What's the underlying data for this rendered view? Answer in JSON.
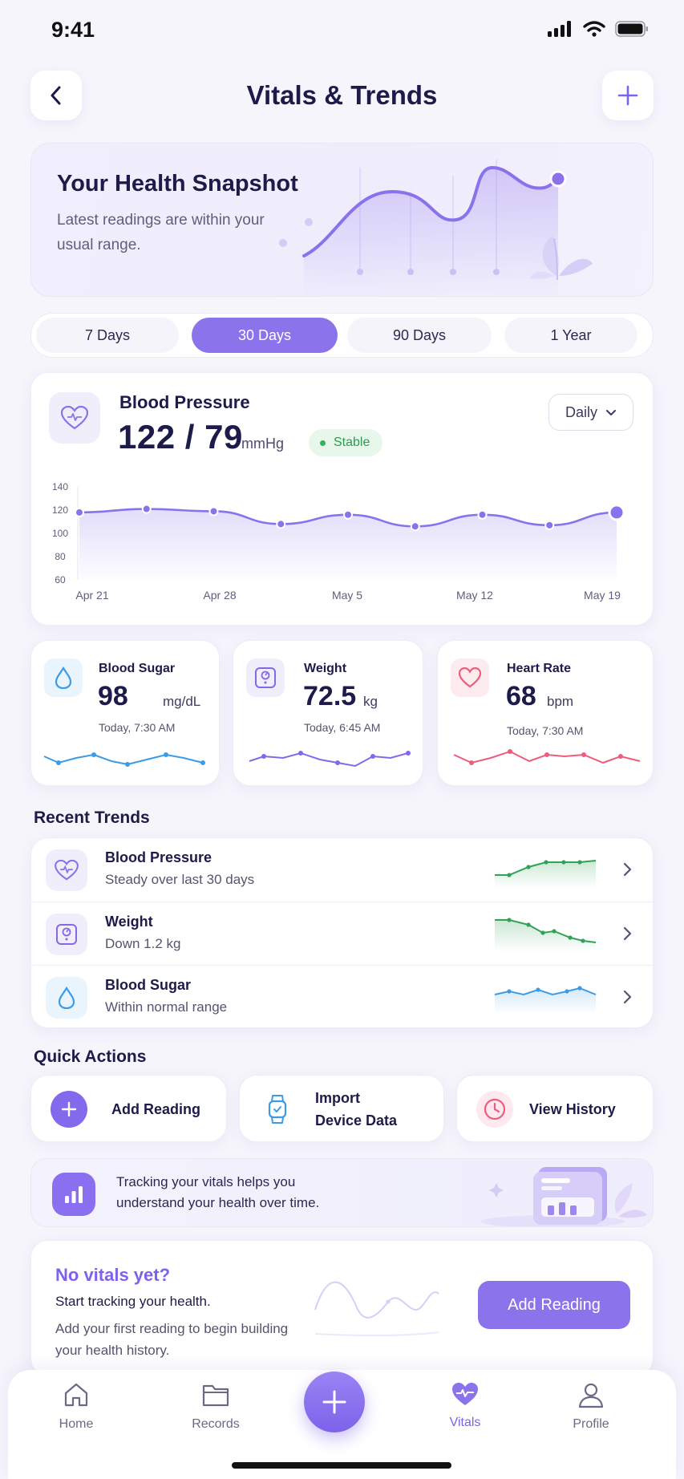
{
  "status_bar": {
    "time": "9:41"
  },
  "header": {
    "title": "Vitals & Trends"
  },
  "snapshot": {
    "title": "Your Health Snapshot",
    "subtitle": "Latest readings are within your usual range."
  },
  "range_tabs": [
    {
      "label": "7 Days",
      "active": false
    },
    {
      "label": "30 Days",
      "active": true
    },
    {
      "label": "90 Days",
      "active": false
    },
    {
      "label": "1 Year",
      "active": false
    }
  ],
  "blood_pressure": {
    "title": "Blood Pressure",
    "value": "122 / 79",
    "unit": "mmHg",
    "status": "Stable",
    "period_select": "Daily"
  },
  "chart_data": {
    "type": "area",
    "y_ticks": [
      "140",
      "120",
      "100",
      "80",
      "60"
    ],
    "x_labels": [
      "Apr 21",
      "Apr 28",
      "May 5",
      "May 12",
      "May 19"
    ],
    "ylim": [
      60,
      140
    ],
    "series": [
      {
        "values": [
          118,
          121,
          119,
          108,
          116,
          106,
          116,
          107,
          118
        ]
      }
    ]
  },
  "metrics": [
    {
      "title": "Blood Sugar",
      "value": "98",
      "unit": "mg/dL",
      "time": "Today, 7:30 AM",
      "icon": "drop-icon",
      "color": "#3b9be6"
    },
    {
      "title": "Weight",
      "value": "72.5",
      "unit": "kg",
      "time": "Today, 6:45 AM",
      "icon": "scale-icon",
      "color": "#8468e8"
    },
    {
      "title": "Heart Rate",
      "value": "68",
      "unit": "bpm",
      "time": "Today, 7:30 AM",
      "icon": "heart-icon",
      "color": "#ee5c7c"
    }
  ],
  "recent_trends": {
    "title": "Recent Trends",
    "items": [
      {
        "title": "Blood Pressure",
        "subtitle": "Steady over last 30 days",
        "color": "#2fa356"
      },
      {
        "title": "Weight",
        "subtitle": "Down 1.2 kg",
        "color": "#2fa356"
      },
      {
        "title": "Blood Sugar",
        "subtitle": "Within normal range",
        "color": "#3b9be6"
      }
    ]
  },
  "quick_actions": {
    "title": "Quick Actions",
    "items": [
      {
        "label": "Add Reading"
      },
      {
        "label_line1": "Import",
        "label_line2": "Device Data"
      },
      {
        "label": "View History"
      }
    ]
  },
  "info_banner": {
    "text": "Tracking your vitals helps you understand your health over time."
  },
  "empty_state": {
    "title": "No vitals yet?",
    "line1": "Start tracking your health.",
    "line2": "Add your first reading to begin building your health history.",
    "button": "Add Reading"
  },
  "tab_bar": [
    {
      "label": "Home",
      "icon": "home-icon"
    },
    {
      "label": "Records",
      "icon": "folder-icon"
    },
    {
      "label": "Vitals",
      "icon": "vitals-heart-icon",
      "active": true
    },
    {
      "label": "Profile",
      "icon": "profile-icon"
    }
  ],
  "colors": {
    "accent": "#8b73ec",
    "stable_green": "#2fa356",
    "text_dark": "#1c1b4a"
  }
}
